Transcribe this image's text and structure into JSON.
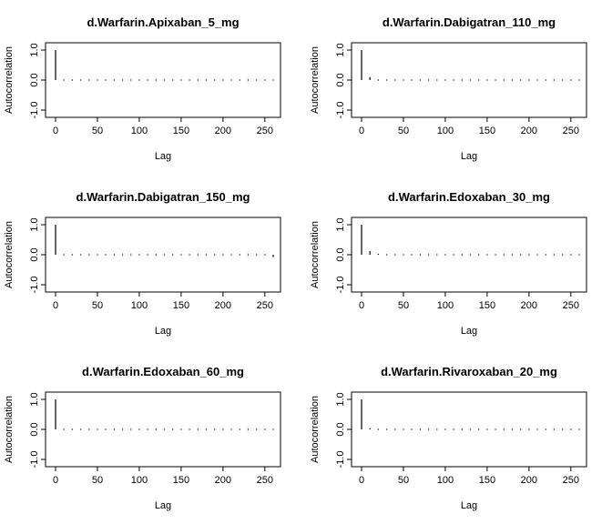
{
  "chart_data": [
    {
      "type": "bar",
      "title": "d.Warfarin.Apixaban_5_mg",
      "xlabel": "Lag",
      "ylabel": "Autocorrelation",
      "xlim": [
        0,
        260
      ],
      "ylim": [
        -1,
        1
      ],
      "xticks": [
        0,
        50,
        100,
        150,
        200,
        250
      ],
      "yticks": [
        -1.0,
        0.0,
        1.0
      ],
      "lags": [
        0,
        10,
        20,
        30,
        40,
        50,
        60,
        70,
        80,
        90,
        100,
        110,
        120,
        130,
        140,
        150,
        160,
        170,
        180,
        190,
        200,
        210,
        220,
        230,
        240,
        250,
        260
      ],
      "values": [
        1.0,
        0.0,
        0.0,
        0.0,
        0.02,
        0.0,
        0.01,
        0.0,
        0.01,
        0.0,
        -0.01,
        0.0,
        0.01,
        -0.01,
        0.0,
        0.01,
        0.0,
        -0.01,
        0.0,
        0.01,
        0.02,
        -0.01,
        0.0,
        0.0,
        0.0,
        0.0,
        0.01
      ]
    },
    {
      "type": "bar",
      "title": "d.Warfarin.Dabigatran_110_mg",
      "xlabel": "Lag",
      "ylabel": "Autocorrelation",
      "xlim": [
        0,
        260
      ],
      "ylim": [
        -1,
        1
      ],
      "xticks": [
        0,
        50,
        100,
        150,
        200,
        250
      ],
      "yticks": [
        -1.0,
        0.0,
        1.0
      ],
      "lags": [
        0,
        10,
        20,
        30,
        40,
        50,
        60,
        70,
        80,
        90,
        100,
        110,
        120,
        130,
        140,
        150,
        160,
        170,
        180,
        190,
        200,
        210,
        220,
        230,
        240,
        250,
        260
      ],
      "values": [
        1.0,
        0.1,
        0.02,
        0.0,
        0.01,
        0.0,
        0.0,
        0.01,
        -0.01,
        0.0,
        0.01,
        0.0,
        -0.02,
        0.0,
        0.01,
        0.0,
        0.0,
        0.01,
        0.0,
        -0.01,
        0.0,
        0.0,
        0.01,
        0.02,
        0.0,
        0.01,
        0.0
      ]
    },
    {
      "type": "bar",
      "title": "d.Warfarin.Dabigatran_150_mg",
      "xlabel": "Lag",
      "ylabel": "Autocorrelation",
      "xlim": [
        0,
        260
      ],
      "ylim": [
        -1,
        1
      ],
      "xticks": [
        0,
        50,
        100,
        150,
        200,
        250
      ],
      "yticks": [
        -1.0,
        0.0,
        1.0
      ],
      "lags": [
        0,
        10,
        20,
        30,
        40,
        50,
        60,
        70,
        80,
        90,
        100,
        110,
        120,
        130,
        140,
        150,
        160,
        170,
        180,
        190,
        200,
        210,
        220,
        230,
        240,
        250,
        260
      ],
      "values": [
        1.0,
        0.02,
        0.01,
        0.0,
        0.02,
        0.0,
        0.0,
        -0.01,
        0.01,
        0.0,
        0.0,
        0.0,
        0.01,
        0.0,
        -0.01,
        0.0,
        0.0,
        0.01,
        0.0,
        0.0,
        0.01,
        0.0,
        -0.01,
        0.0,
        0.0,
        0.0,
        -0.08
      ]
    },
    {
      "type": "bar",
      "title": "d.Warfarin.Edoxaban_30_mg",
      "xlabel": "Lag",
      "ylabel": "Autocorrelation",
      "xlim": [
        0,
        260
      ],
      "ylim": [
        -1,
        1
      ],
      "xticks": [
        0,
        50,
        100,
        150,
        200,
        250
      ],
      "yticks": [
        -1.0,
        0.0,
        1.0
      ],
      "lags": [
        0,
        10,
        20,
        30,
        40,
        50,
        60,
        70,
        80,
        90,
        100,
        110,
        120,
        130,
        140,
        150,
        160,
        170,
        180,
        190,
        200,
        210,
        220,
        230,
        240,
        250,
        260
      ],
      "values": [
        1.0,
        0.12,
        0.03,
        0.02,
        0.0,
        0.01,
        0.0,
        0.01,
        0.0,
        -0.01,
        0.0,
        0.01,
        0.02,
        0.0,
        0.01,
        0.0,
        0.0,
        -0.01,
        0.0,
        0.01,
        0.0,
        0.0,
        0.01,
        0.0,
        0.0,
        0.02,
        0.0
      ]
    },
    {
      "type": "bar",
      "title": "d.Warfarin.Edoxaban_60_mg",
      "xlabel": "Lag",
      "ylabel": "Autocorrelation",
      "xlim": [
        0,
        260
      ],
      "ylim": [
        -1,
        1
      ],
      "xticks": [
        0,
        50,
        100,
        150,
        200,
        250
      ],
      "yticks": [
        -1.0,
        0.0,
        1.0
      ],
      "lags": [
        0,
        10,
        20,
        30,
        40,
        50,
        60,
        70,
        80,
        90,
        100,
        110,
        120,
        130,
        140,
        150,
        160,
        170,
        180,
        190,
        200,
        210,
        220,
        230,
        240,
        250,
        260
      ],
      "values": [
        1.0,
        0.02,
        0.0,
        0.0,
        0.01,
        0.0,
        0.0,
        0.0,
        0.01,
        0.0,
        0.0,
        0.0,
        0.0,
        0.0,
        0.01,
        0.0,
        0.01,
        0.0,
        0.0,
        -0.02,
        0.0,
        0.0,
        0.01,
        0.0,
        0.0,
        0.0,
        0.0
      ]
    },
    {
      "type": "bar",
      "title": "d.Warfarin.Rivaroxaban_20_mg",
      "xlabel": "Lag",
      "ylabel": "Autocorrelation",
      "xlim": [
        0,
        260
      ],
      "ylim": [
        -1,
        1
      ],
      "xticks": [
        0,
        50,
        100,
        150,
        200,
        250
      ],
      "yticks": [
        -1.0,
        0.0,
        1.0
      ],
      "lags": [
        0,
        10,
        20,
        30,
        40,
        50,
        60,
        70,
        80,
        90,
        100,
        110,
        120,
        130,
        140,
        150,
        160,
        170,
        180,
        190,
        200,
        210,
        220,
        230,
        240,
        250,
        260
      ],
      "values": [
        1.0,
        0.04,
        0.0,
        0.0,
        0.01,
        0.0,
        0.0,
        0.0,
        0.01,
        -0.01,
        0.0,
        -0.01,
        0.0,
        0.0,
        0.0,
        0.01,
        0.0,
        0.0,
        0.0,
        0.0,
        0.01,
        0.0,
        0.0,
        -0.01,
        0.0,
        0.0,
        0.0
      ]
    }
  ]
}
